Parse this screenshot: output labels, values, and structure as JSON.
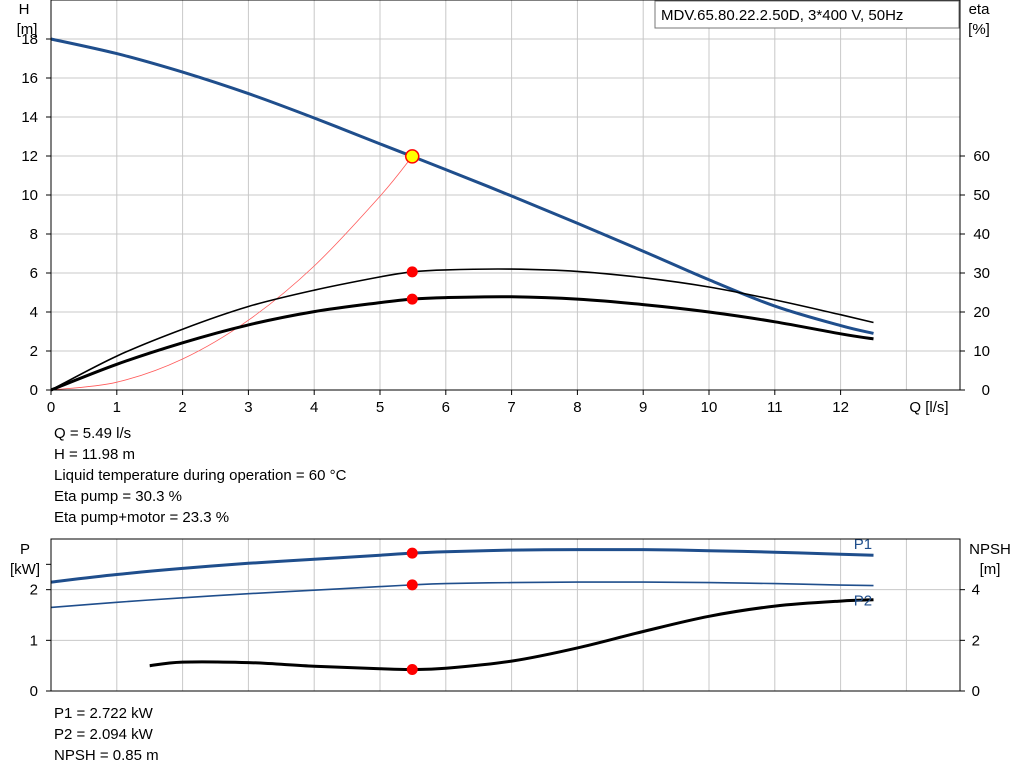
{
  "title_box": "MDV.65.80.22.2.50D, 3*400 V, 50Hz",
  "top_axes": {
    "y_left_label": [
      "H",
      "[m]"
    ],
    "y_right_label": [
      "eta",
      "[%]"
    ],
    "x_label": "Q [l/s]"
  },
  "bottom_axes": {
    "y_left_label": [
      "P",
      "[kW]"
    ],
    "y_right_label": [
      "NPSH",
      "[m]"
    ]
  },
  "info_top": [
    "Q = 5.49 l/s",
    "H = 11.98 m",
    "Liquid temperature during operation = 60 °C",
    "Eta pump = 30.3 %",
    "Eta pump+motor = 23.3 %"
  ],
  "info_bottom": [
    "P1 = 2.722 kW",
    "P2 = 2.094 kW",
    "NPSH = 0.85 m"
  ],
  "colors": {
    "pump_curve": "#1f4e8c",
    "system_curve": "#ff5a5a",
    "duty_point": "#ff0000",
    "duty_highlight": "#ffff00",
    "grid": "#c8c8c8"
  },
  "chart_data": [
    {
      "type": "line",
      "xlabel": "Q [l/s]",
      "ylabel": "H [m]",
      "y2label": "eta [%]",
      "xlim": [
        0,
        14
      ],
      "xticks": [
        0,
        1,
        2,
        3,
        4,
        5,
        6,
        7,
        8,
        9,
        10,
        11,
        12
      ],
      "ylim": [
        0,
        20
      ],
      "yticks": [
        0,
        2,
        4,
        6,
        8,
        10,
        12,
        14,
        16,
        18
      ],
      "y2lim": [
        0,
        100
      ],
      "y2ticks": [
        0,
        10,
        20,
        30,
        40,
        50,
        60
      ],
      "grid": true,
      "series": [
        {
          "name": "H",
          "axis": "left",
          "color": "#1f4e8c",
          "x": [
            0,
            1,
            2,
            3,
            4,
            5,
            5.49,
            6,
            7,
            8,
            9,
            10,
            11,
            12,
            12.5
          ],
          "y": [
            18.0,
            17.25,
            16.3,
            15.2,
            13.95,
            12.62,
            11.98,
            11.3,
            9.95,
            8.55,
            7.12,
            5.65,
            4.3,
            3.3,
            2.9
          ]
        },
        {
          "name": "System curve",
          "axis": "left",
          "color": "#ff5a5a",
          "x": [
            0,
            1,
            2,
            3,
            4,
            5,
            5.49
          ],
          "y": [
            0,
            0.4,
            1.59,
            3.58,
            6.36,
            9.94,
            11.98
          ]
        },
        {
          "name": "Eta pump",
          "axis": "right",
          "color": "#000000",
          "x": [
            0,
            1,
            2,
            3,
            4,
            5,
            5.49,
            6,
            7,
            8,
            9,
            10,
            11,
            12,
            12.5
          ],
          "y": [
            0,
            8.7,
            15.6,
            21.4,
            25.6,
            29.0,
            30.3,
            30.8,
            31.0,
            30.4,
            28.8,
            26.4,
            23.1,
            19.3,
            17.3
          ]
        },
        {
          "name": "Eta pump+motor",
          "axis": "right",
          "color": "#000000",
          "x": [
            0,
            1,
            2,
            3,
            4,
            5,
            5.49,
            6,
            7,
            8,
            9,
            10,
            11,
            12,
            12.5
          ],
          "y": [
            0,
            6.6,
            12.1,
            16.7,
            20.1,
            22.4,
            23.3,
            23.7,
            23.9,
            23.3,
            21.9,
            20.0,
            17.5,
            14.4,
            13.1
          ]
        }
      ],
      "markers": [
        {
          "x": 5.49,
          "y": 11.98,
          "axis": "left",
          "style": "highlight"
        },
        {
          "x": 5.49,
          "y": 30.3,
          "axis": "right",
          "style": "dot"
        },
        {
          "x": 5.49,
          "y": 23.3,
          "axis": "right",
          "style": "dot"
        }
      ]
    },
    {
      "type": "line",
      "xlim": [
        0,
        14
      ],
      "ylabel": "P [kW]",
      "y2label": "NPSH [m]",
      "ylim": [
        0,
        3
      ],
      "yticks": [
        0,
        1,
        2
      ],
      "y2lim": [
        0,
        6
      ],
      "y2ticks": [
        0,
        2,
        4
      ],
      "grid": true,
      "series": [
        {
          "name": "P1",
          "axis": "left",
          "color": "#1f4e8c",
          "label_at": 12.2,
          "x": [
            0,
            1,
            2,
            3,
            4,
            5,
            5.49,
            6,
            7,
            8,
            9,
            10,
            11,
            12,
            12.5
          ],
          "y": [
            2.15,
            2.3,
            2.42,
            2.52,
            2.6,
            2.68,
            2.722,
            2.75,
            2.78,
            2.79,
            2.79,
            2.77,
            2.74,
            2.7,
            2.68
          ]
        },
        {
          "name": "P2",
          "axis": "left",
          "color": "#1f4e8c",
          "label_at": 12.2,
          "x": [
            0,
            1,
            2,
            3,
            4,
            5,
            5.49,
            6,
            7,
            8,
            9,
            10,
            11,
            12,
            12.5
          ],
          "y": [
            1.65,
            1.75,
            1.84,
            1.92,
            1.99,
            2.06,
            2.094,
            2.12,
            2.14,
            2.15,
            2.15,
            2.14,
            2.12,
            2.09,
            2.08
          ]
        },
        {
          "name": "NPSH",
          "axis": "right",
          "color": "#000000",
          "x": [
            1.5,
            2,
            3,
            4,
            5,
            5.49,
            6,
            7,
            8,
            9,
            10,
            11,
            12,
            12.5
          ],
          "y": [
            1.0,
            1.14,
            1.12,
            0.98,
            0.88,
            0.85,
            0.9,
            1.18,
            1.7,
            2.35,
            2.95,
            3.35,
            3.55,
            3.6
          ]
        }
      ],
      "markers": [
        {
          "x": 5.49,
          "y": 2.722,
          "axis": "left",
          "style": "dot"
        },
        {
          "x": 5.49,
          "y": 2.094,
          "axis": "left",
          "style": "dot"
        },
        {
          "x": 5.49,
          "y": 0.85,
          "axis": "right",
          "style": "dot"
        }
      ]
    }
  ]
}
